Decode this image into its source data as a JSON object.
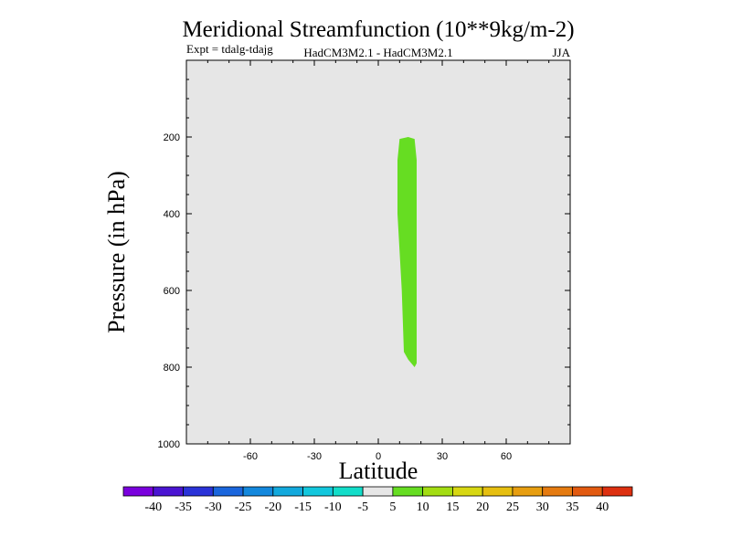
{
  "chart_data": {
    "type": "heatmap",
    "title": "Meridional Streamfunction (10**9kg/m-2)",
    "subtitle_left": "Expt = tdalg-tdajg",
    "subtitle_center": "HadCM3M2.1 - HadCM3M2.1",
    "subtitle_right": "JJA",
    "xlabel": "Latitude",
    "ylabel": "Pressure (in hPa)",
    "xlim": [
      -90,
      90
    ],
    "ylim": [
      1000,
      0
    ],
    "x_ticks": [
      -60,
      -30,
      0,
      30,
      60
    ],
    "x_tick_labels": [
      "-60",
      "-30",
      "0",
      "30",
      "60"
    ],
    "y_ticks": [
      200,
      400,
      600,
      800,
      1000
    ],
    "y_tick_labels": [
      "200",
      "400",
      "600",
      "800",
      "1000"
    ],
    "background_value_range": "-5 to 5",
    "background_color": "#e6e6e6",
    "region": {
      "name": "5 to 10",
      "color": "#66dd22",
      "outline": [
        [
          10,
          205
        ],
        [
          14,
          200
        ],
        [
          17,
          205
        ],
        [
          18,
          260
        ],
        [
          18,
          790
        ],
        [
          17,
          800
        ],
        [
          14,
          780
        ],
        [
          12,
          760
        ],
        [
          11,
          600
        ],
        [
          9,
          400
        ],
        [
          9,
          260
        ]
      ]
    },
    "colorbar": {
      "colors": [
        "#7a00dd",
        "#4a14d2",
        "#2a33d8",
        "#1a66dd",
        "#1388dd",
        "#12a9dd",
        "#12c7dd",
        "#12ddc9",
        "#e6e6e6",
        "#66dd22",
        "#a3dd12",
        "#d7d712",
        "#e6bf10",
        "#e79e10",
        "#e57b10",
        "#e25a10",
        "#dd3010"
      ],
      "labels": [
        "-40",
        "-35",
        "-30",
        "-25",
        "-20",
        "-15",
        "-10",
        "-5",
        "5",
        "10",
        "15",
        "20",
        "25",
        "30",
        "35",
        "40"
      ]
    }
  }
}
